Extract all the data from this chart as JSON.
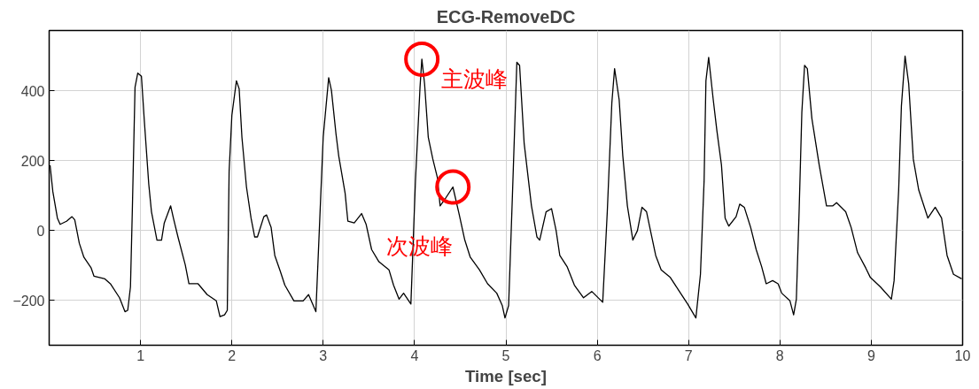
{
  "chart_data": {
    "type": "line",
    "title": "ECG-RemoveDC",
    "xlabel": "Time [sec]",
    "xlim": [
      0,
      10
    ],
    "ylim": [
      -328,
      573
    ],
    "xticks": [
      1,
      2,
      3,
      4,
      5,
      6,
      7,
      8,
      9,
      10
    ],
    "yticks": [
      -200,
      0,
      200,
      400
    ],
    "grid": true,
    "marker": "none",
    "line_style": "solid",
    "series": [
      {
        "color": "#000000",
        "x": [
          0.01,
          0.04,
          0.09,
          0.12,
          0.19,
          0.25,
          0.28,
          0.33,
          0.38,
          0.46,
          0.49,
          0.61,
          0.67,
          0.77,
          0.83,
          0.86,
          0.89,
          0.91,
          0.94,
          0.97,
          1.01,
          1.04,
          1.09,
          1.12,
          1.18,
          1.23,
          1.26,
          1.33,
          1.36,
          1.41,
          1.49,
          1.53,
          1.63,
          1.73,
          1.83,
          1.87,
          1.92,
          1.95,
          1.97,
          2.0,
          2.05,
          2.08,
          2.11,
          2.16,
          2.21,
          2.25,
          2.28,
          2.35,
          2.38,
          2.43,
          2.47,
          2.53,
          2.58,
          2.68,
          2.78,
          2.84,
          2.92,
          2.96,
          3.0,
          3.06,
          3.09,
          3.14,
          3.17,
          3.24,
          3.27,
          3.34,
          3.42,
          3.47,
          3.53,
          3.61,
          3.72,
          3.77,
          3.83,
          3.88,
          3.96,
          4.01,
          4.06,
          4.08,
          4.11,
          4.15,
          4.2,
          4.25,
          4.28,
          4.33,
          4.42,
          4.49,
          4.55,
          4.61,
          4.71,
          4.8,
          4.9,
          4.96,
          4.99,
          5.03,
          5.07,
          5.12,
          5.15,
          5.2,
          5.28,
          5.34,
          5.37,
          5.44,
          5.5,
          5.55,
          5.59,
          5.67,
          5.75,
          5.85,
          5.94,
          6.06,
          6.11,
          6.16,
          6.19,
          6.24,
          6.28,
          6.33,
          6.39,
          6.44,
          6.49,
          6.54,
          6.59,
          6.64,
          6.7,
          6.8,
          6.89,
          6.99,
          7.08,
          7.13,
          7.17,
          7.19,
          7.22,
          7.27,
          7.31,
          7.36,
          7.4,
          7.44,
          7.52,
          7.56,
          7.61,
          7.68,
          7.74,
          7.8,
          7.85,
          7.92,
          7.98,
          8.02,
          8.11,
          8.15,
          8.18,
          8.21,
          8.24,
          8.27,
          8.3,
          8.35,
          8.43,
          8.51,
          8.58,
          8.62,
          8.72,
          8.78,
          8.85,
          8.94,
          8.99,
          9.1,
          9.22,
          9.25,
          9.3,
          9.33,
          9.37,
          9.41,
          9.46,
          9.52,
          9.62,
          9.7,
          9.77,
          9.83,
          9.9,
          9.99
        ],
        "values": [
          187,
          112,
          36,
          18,
          27,
          40,
          31,
          -36,
          -76,
          -107,
          -130,
          -138,
          -152,
          -192,
          -232,
          -228,
          -161,
          54,
          411,
          451,
          442,
          321,
          134,
          54,
          -27,
          -27,
          22,
          71,
          36,
          -18,
          -98,
          -152,
          -152,
          -183,
          -201,
          -246,
          -241,
          -228,
          170,
          330,
          429,
          406,
          268,
          125,
          36,
          -18,
          -18,
          40,
          45,
          9,
          -71,
          -116,
          -156,
          -201,
          -201,
          -183,
          -232,
          18,
          268,
          438,
          402,
          277,
          214,
          107,
          27,
          22,
          49,
          18,
          -54,
          -89,
          -112,
          -156,
          -196,
          -179,
          -210,
          143,
          411,
          491,
          420,
          268,
          205,
          152,
          71,
          89,
          125,
          45,
          -27,
          -76,
          -112,
          -152,
          -179,
          -214,
          -250,
          -214,
          89,
          482,
          473,
          250,
          71,
          -18,
          -27,
          54,
          63,
          0,
          -71,
          -103,
          -156,
          -192,
          -174,
          -205,
          54,
          366,
          464,
          375,
          214,
          71,
          -27,
          0,
          67,
          54,
          -9,
          -71,
          -112,
          -134,
          -170,
          -210,
          -250,
          -125,
          143,
          429,
          496,
          375,
          286,
          188,
          36,
          13,
          40,
          76,
          67,
          9,
          -54,
          -103,
          -152,
          -143,
          -152,
          -179,
          -201,
          -241,
          -196,
          54,
          339,
          473,
          464,
          321,
          188,
          71,
          71,
          80,
          54,
          9,
          -63,
          -107,
          -134,
          -161,
          -196,
          -143,
          116,
          357,
          500,
          420,
          205,
          116,
          36,
          67,
          36,
          -71,
          -125,
          -138
        ]
      }
    ],
    "annotations": [
      {
        "text": "主波峰",
        "x": 4.08,
        "y": 491
      },
      {
        "text": "次波峰",
        "x": 4.42,
        "y": 125
      }
    ]
  }
}
